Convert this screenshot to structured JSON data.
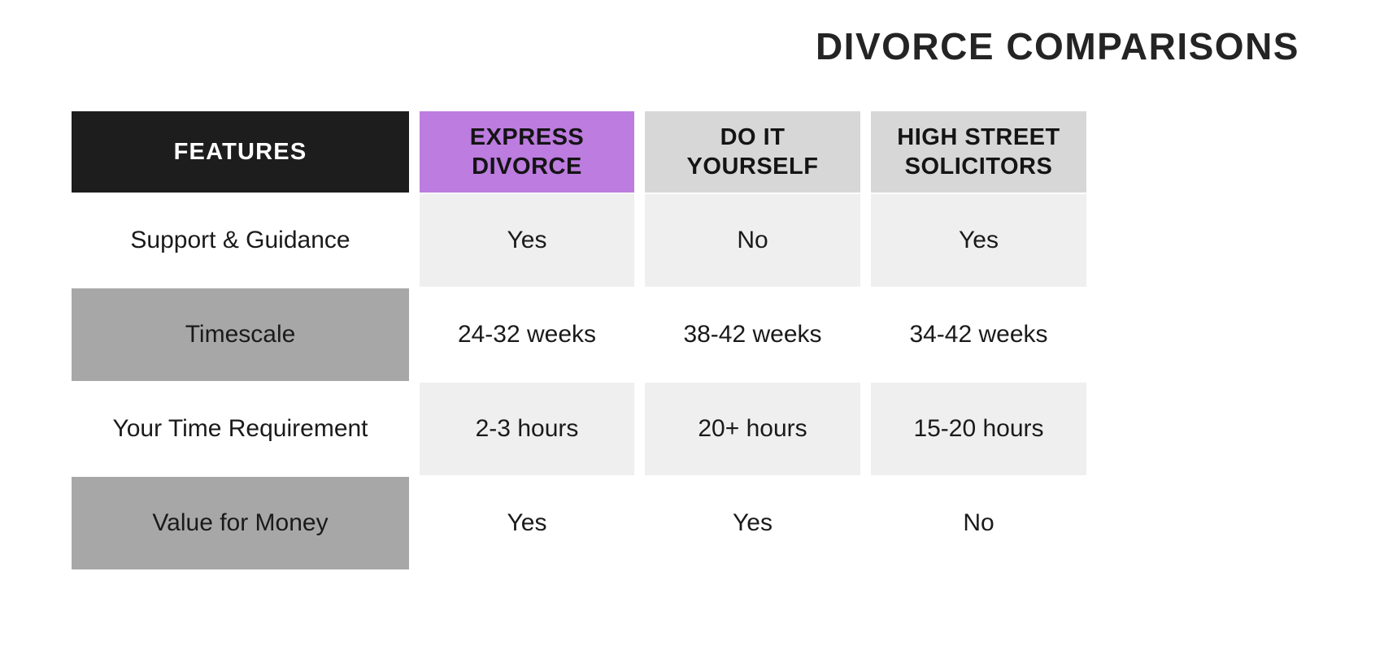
{
  "title": "DIVORCE COMPARISONS",
  "colors": {
    "features_header_bg": "#1d1d1d",
    "features_header_text": "#ffffff",
    "express_header_bg": "#bd7ce0",
    "plain_header_bg": "#d7d7d7",
    "data_row_light_bg": "#efefef",
    "feature_row_gray_bg": "#a7a7a7",
    "body_text": "#1a1a1a",
    "title_text": "#242424",
    "canvas_bg": "#ffffff"
  },
  "chart_data": {
    "type": "table",
    "title": "DIVORCE COMPARISONS",
    "columns": [
      {
        "label": "FEATURES",
        "style": "dark"
      },
      {
        "label": "EXPRESS DIVORCE",
        "style": "purple"
      },
      {
        "label": "DO IT YOURSELF",
        "style": "gray"
      },
      {
        "label": "HIGH STREET SOLICITORS",
        "style": "gray"
      }
    ],
    "rows": [
      {
        "feature": "Support & Guidance",
        "values": [
          "Yes",
          "No",
          "Yes"
        ]
      },
      {
        "feature": "Timescale",
        "values": [
          "24-32 weeks",
          "38-42 weeks",
          "34-42 weeks"
        ]
      },
      {
        "feature": "Your Time Requirement",
        "values": [
          "2-3 hours",
          "20+ hours",
          "15-20 hours"
        ]
      },
      {
        "feature": "Value for Money",
        "values": [
          "Yes",
          "Yes",
          "No"
        ]
      }
    ],
    "layout_hints": {
      "header_fills": [
        "dark",
        "purple",
        "light-gray",
        "light-gray"
      ],
      "feature_column_fills_by_row": [
        "none",
        "gray",
        "none",
        "gray"
      ],
      "data_column_fills_by_row": [
        "light",
        "none",
        "light",
        "none"
      ],
      "grid": "off",
      "title_position": "top-right"
    }
  }
}
